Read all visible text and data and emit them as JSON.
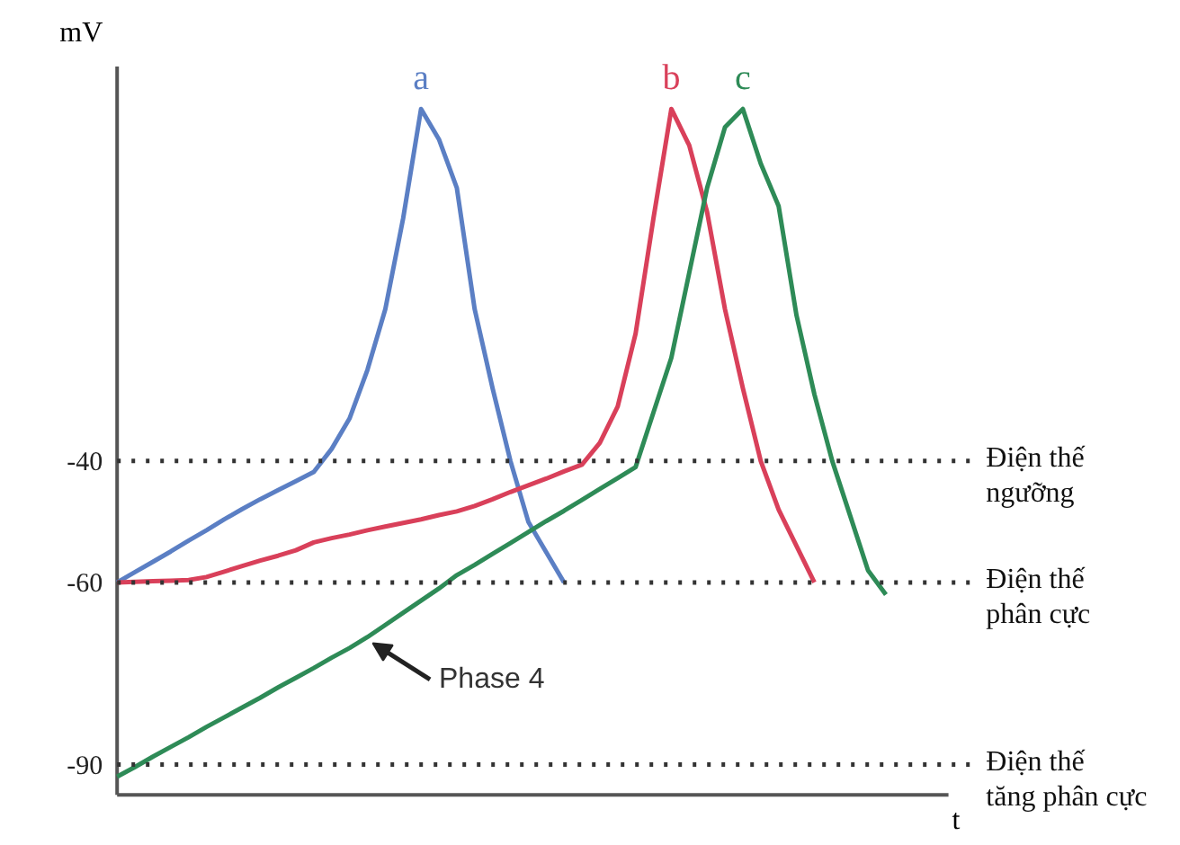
{
  "chart_data": {
    "type": "line",
    "ylabel": "mV",
    "xlabel": "t",
    "categories": [
      null,
      null,
      null,
      null,
      null,
      null,
      null,
      null,
      null,
      null,
      null,
      null,
      null,
      null,
      null,
      null,
      null,
      null,
      null,
      null,
      null,
      null,
      null,
      null,
      null,
      null,
      null,
      null,
      null,
      null,
      null,
      null,
      null,
      null,
      null,
      null,
      null,
      null,
      null,
      null,
      null,
      null,
      null,
      null,
      null,
      null,
      null
    ],
    "ylim": [
      -95,
      25
    ],
    "yticks": [
      {
        "value": -90,
        "label": "-90"
      },
      {
        "value": -60,
        "label": "-60"
      },
      {
        "value": -40,
        "label": "-40"
      }
    ],
    "grid": false,
    "legend": false,
    "line_style": "solid",
    "series": [
      {
        "name": "a",
        "color": "#5b7fc4",
        "values": [
          -60,
          -58.3,
          -56.6,
          -54.9,
          -53.1,
          -51.4,
          -49.6,
          -47.9,
          -46.3,
          -44.8,
          -43.3,
          -41.8,
          -38,
          -33,
          -25,
          -15,
          0,
          18,
          13,
          5,
          -15,
          -28,
          -40,
          -50,
          -55,
          -60,
          null,
          null,
          null,
          null,
          null,
          null,
          null,
          null,
          null,
          null,
          null,
          null,
          null,
          null,
          null,
          null,
          null,
          null,
          null,
          null,
          null
        ]
      },
      {
        "name": "b",
        "color": "#d9405a",
        "values": [
          -60,
          -59.9,
          -59.8,
          -59.7,
          -59.6,
          -59.1,
          -58.2,
          -57.3,
          -56.4,
          -55.6,
          -54.7,
          -53.4,
          -52.7,
          -52.1,
          -51.4,
          -50.8,
          -50.2,
          -49.6,
          -48.9,
          -48.3,
          -47.4,
          -46.3,
          -45.1,
          -44,
          -42.9,
          -41.7,
          -40.6,
          -37,
          -31,
          -19,
          0,
          18,
          12,
          1,
          -15,
          -28,
          -40,
          -48,
          -54,
          -60,
          null,
          null,
          null,
          null,
          null,
          null,
          null
        ]
      },
      {
        "name": "c",
        "color": "#2e8b57",
        "values": [
          -92,
          -90.4,
          -88.7,
          -87.1,
          -85.5,
          -83.8,
          -82.2,
          -80.6,
          -79,
          -77.3,
          -75.7,
          -74.1,
          -72.4,
          -70.8,
          -69,
          -67,
          -65,
          -63,
          -61,
          -58.8,
          -57.1,
          -55.3,
          -53.5,
          -51.7,
          -49.9,
          -48.2,
          -46.4,
          -44.6,
          -42.8,
          -41,
          -32,
          -23,
          -9,
          5,
          15,
          18,
          9,
          2,
          -16,
          -29,
          -40,
          -49,
          -58,
          -62,
          null,
          null,
          null
        ]
      }
    ],
    "ref_lines": [
      {
        "axis": "y",
        "value": -40,
        "label": "Điện thế ngưỡng",
        "line_style": "dotted",
        "color": "#333333"
      },
      {
        "axis": "y",
        "value": -60,
        "label": "Điện thế phân cực",
        "line_style": "dotted",
        "color": "#333333"
      },
      {
        "axis": "y",
        "value": -90,
        "label": "Điện thế tăng phân cực",
        "line_style": "dotted",
        "color": "#333333"
      }
    ],
    "annotations": [
      "Phase 4"
    ]
  }
}
